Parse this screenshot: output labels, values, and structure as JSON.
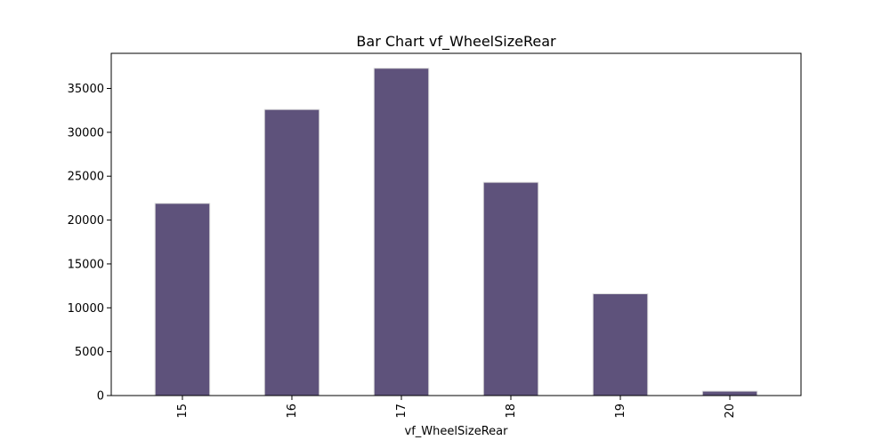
{
  "chart_data": {
    "type": "bar",
    "title": "Bar Chart vf_WheelSizeRear",
    "xlabel": "vf_WheelSizeRear",
    "ylabel": "",
    "categories": [
      "15",
      "16",
      "17",
      "18",
      "19",
      "20"
    ],
    "values": [
      21900,
      32600,
      37300,
      24300,
      11600,
      500
    ],
    "ylim": [
      0,
      39000
    ],
    "yticks": [
      0,
      5000,
      10000,
      15000,
      20000,
      25000,
      30000,
      35000
    ],
    "ytick_labels": [
      "0",
      "5000",
      "10000",
      "15000",
      "20000",
      "25000",
      "30000",
      "35000"
    ],
    "x_tick_rotation": "vertical",
    "grid": false,
    "legend": "none",
    "bar_color": "#5e527b",
    "bar_edge_color": "#dcdcdc"
  }
}
